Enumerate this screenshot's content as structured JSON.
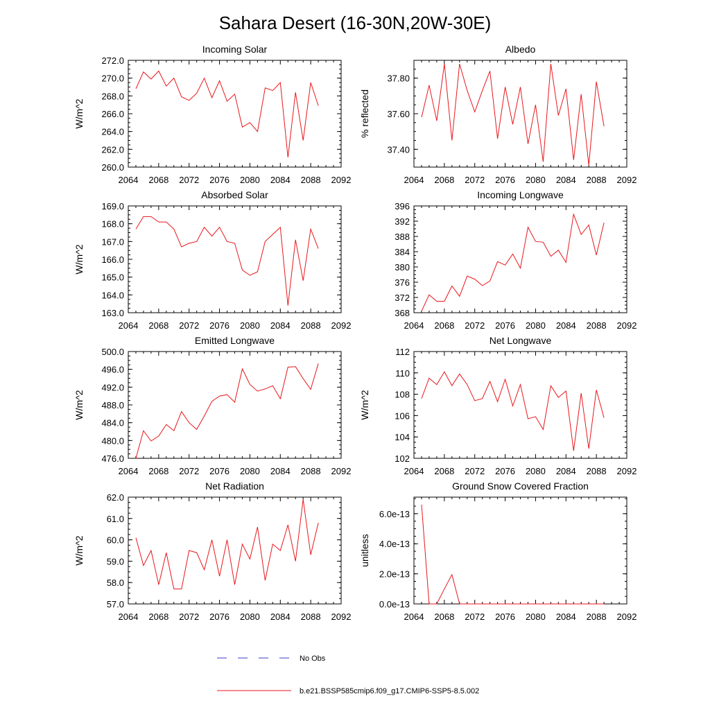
{
  "title": "Sahara Desert (16-30N,20W-30E)",
  "colors": {
    "model": "#e8161b",
    "obs": "#3a3ac9"
  },
  "legend": {
    "obs_label": "No Obs",
    "model_label": "b.e21.BSSP585cmip6.f09_g17.CMIP6-SSP5-8.5.002"
  },
  "chart_data": [
    {
      "type": "line",
      "title": "Incoming Solar",
      "ylabel": "W/m^2",
      "xlim": [
        2064,
        2092
      ],
      "xticks": [
        "2064",
        "2068",
        "2072",
        "2076",
        "2080",
        "2084",
        "2088",
        "2092"
      ],
      "ylim": [
        260,
        272
      ],
      "yticks": [
        "260.0",
        "262.0",
        "264.0",
        "266.0",
        "268.0",
        "270.0",
        "272.0"
      ],
      "x": [
        2065,
        2066,
        2067,
        2068,
        2069,
        2070,
        2071,
        2072,
        2073,
        2074,
        2075,
        2076,
        2077,
        2078,
        2079,
        2080,
        2081,
        2082,
        2083,
        2084,
        2085,
        2086,
        2087,
        2088,
        2089
      ],
      "values": [
        268.8,
        270.7,
        269.9,
        270.8,
        269.1,
        270.0,
        267.9,
        267.5,
        268.3,
        270.0,
        267.8,
        269.7,
        267.4,
        268.2,
        264.5,
        265.0,
        264.0,
        268.9,
        268.6,
        269.5,
        261.1,
        268.4,
        263.0,
        269.5,
        266.9
      ]
    },
    {
      "type": "line",
      "title": "Albedo",
      "ylabel": "% reflected",
      "xlim": [
        2064,
        2092
      ],
      "xticks": [
        "2064",
        "2068",
        "2072",
        "2076",
        "2080",
        "2084",
        "2088",
        "2092"
      ],
      "ylim": [
        37.3,
        37.9
      ],
      "yticks": [
        "37.40",
        "37.60",
        "37.80"
      ],
      "ytick_values": [
        37.4,
        37.6,
        37.8
      ],
      "x": [
        2065,
        2066,
        2067,
        2068,
        2069,
        2070,
        2071,
        2072,
        2073,
        2074,
        2075,
        2076,
        2077,
        2078,
        2079,
        2080,
        2081,
        2082,
        2083,
        2084,
        2085,
        2086,
        2087,
        2088,
        2089
      ],
      "values": [
        37.58,
        37.76,
        37.56,
        37.88,
        37.45,
        37.88,
        37.73,
        37.61,
        37.73,
        37.84,
        37.46,
        37.75,
        37.54,
        37.75,
        37.43,
        37.65,
        37.33,
        37.88,
        37.59,
        37.74,
        37.34,
        37.71,
        37.31,
        37.78,
        37.53
      ]
    },
    {
      "type": "line",
      "title": "Absorbed Solar",
      "ylabel": "W/m^2",
      "xlim": [
        2064,
        2092
      ],
      "xticks": [
        "2064",
        "2068",
        "2072",
        "2076",
        "2080",
        "2084",
        "2088",
        "2092"
      ],
      "ylim": [
        163,
        169
      ],
      "yticks": [
        "163.0",
        "164.0",
        "165.0",
        "166.0",
        "167.0",
        "168.0",
        "169.0"
      ],
      "x": [
        2065,
        2066,
        2067,
        2068,
        2069,
        2070,
        2071,
        2072,
        2073,
        2074,
        2075,
        2076,
        2077,
        2078,
        2079,
        2080,
        2081,
        2082,
        2083,
        2084,
        2085,
        2086,
        2087,
        2088,
        2089
      ],
      "values": [
        167.7,
        168.4,
        168.4,
        168.1,
        168.1,
        167.7,
        166.7,
        166.9,
        167.0,
        167.8,
        167.3,
        167.8,
        167.0,
        166.9,
        165.4,
        165.1,
        165.3,
        167.0,
        167.4,
        167.8,
        163.4,
        167.1,
        164.8,
        167.7,
        166.6
      ]
    },
    {
      "type": "line",
      "title": "Incoming Longwave",
      "ylabel": "",
      "xlim": [
        2064,
        2092
      ],
      "xticks": [
        "2064",
        "2068",
        "2072",
        "2076",
        "2080",
        "2084",
        "2088",
        "2092"
      ],
      "ylim": [
        368,
        396
      ],
      "yticks": [
        "368",
        "372",
        "376",
        "380",
        "384",
        "388",
        "392",
        "396"
      ],
      "x": [
        2065,
        2066,
        2067,
        2068,
        2069,
        2070,
        2071,
        2072,
        2073,
        2074,
        2075,
        2076,
        2077,
        2078,
        2079,
        2080,
        2081,
        2082,
        2083,
        2084,
        2085,
        2086,
        2087,
        2088,
        2089
      ],
      "values": [
        368.4,
        372.7,
        371.0,
        371.0,
        375.0,
        372.3,
        377.6,
        376.8,
        375.1,
        376.3,
        381.4,
        380.5,
        383.4,
        379.7,
        390.4,
        386.7,
        386.5,
        382.8,
        384.4,
        381.2,
        393.8,
        388.5,
        391.0,
        383.1,
        391.6
      ]
    },
    {
      "type": "line",
      "title": "Emitted Longwave",
      "ylabel": "W/m^2",
      "xlim": [
        2064,
        2092
      ],
      "xticks": [
        "2064",
        "2068",
        "2072",
        "2076",
        "2080",
        "2084",
        "2088",
        "2092"
      ],
      "ylim": [
        476,
        500
      ],
      "yticks": [
        "476.0",
        "480.0",
        "484.0",
        "488.0",
        "492.0",
        "496.0",
        "500.0"
      ],
      "x": [
        2065,
        2066,
        2067,
        2068,
        2069,
        2070,
        2071,
        2072,
        2073,
        2074,
        2075,
        2076,
        2077,
        2078,
        2079,
        2080,
        2081,
        2082,
        2083,
        2084,
        2085,
        2086,
        2087,
        2088,
        2089
      ],
      "values": [
        476.0,
        482.2,
        479.9,
        481.0,
        483.6,
        482.2,
        486.5,
        484.0,
        482.5,
        485.5,
        488.8,
        490.0,
        490.3,
        488.6,
        496.1,
        492.6,
        491.1,
        491.6,
        492.3,
        489.4,
        496.5,
        496.6,
        493.9,
        491.5,
        497.3
      ]
    },
    {
      "type": "line",
      "title": "Net Longwave",
      "ylabel": "W/m^2",
      "xlim": [
        2064,
        2092
      ],
      "xticks": [
        "2064",
        "2068",
        "2072",
        "2076",
        "2080",
        "2084",
        "2088",
        "2092"
      ],
      "ylim": [
        102,
        112
      ],
      "yticks": [
        "102",
        "104",
        "106",
        "108",
        "110",
        "112"
      ],
      "x": [
        2065,
        2066,
        2067,
        2068,
        2069,
        2070,
        2071,
        2072,
        2073,
        2074,
        2075,
        2076,
        2077,
        2078,
        2079,
        2080,
        2081,
        2082,
        2083,
        2084,
        2085,
        2086,
        2087,
        2088,
        2089
      ],
      "values": [
        107.6,
        109.5,
        108.9,
        110.1,
        108.8,
        109.9,
        108.9,
        107.4,
        107.6,
        109.2,
        107.3,
        109.4,
        106.9,
        108.9,
        105.7,
        105.9,
        104.7,
        108.8,
        107.7,
        108.3,
        102.7,
        108.1,
        102.9,
        108.4,
        105.8
      ]
    },
    {
      "type": "line",
      "title": "Net Radiation",
      "ylabel": "W/m^2",
      "xlim": [
        2064,
        2092
      ],
      "xticks": [
        "2064",
        "2068",
        "2072",
        "2076",
        "2080",
        "2084",
        "2088",
        "2092"
      ],
      "ylim": [
        57,
        62
      ],
      "yticks": [
        "57.0",
        "58.0",
        "59.0",
        "60.0",
        "61.0",
        "62.0"
      ],
      "x": [
        2065,
        2066,
        2067,
        2068,
        2069,
        2070,
        2071,
        2072,
        2073,
        2074,
        2075,
        2076,
        2077,
        2078,
        2079,
        2080,
        2081,
        2082,
        2083,
        2084,
        2085,
        2086,
        2087,
        2088,
        2089
      ],
      "values": [
        60.1,
        58.8,
        59.5,
        57.9,
        59.4,
        57.7,
        57.7,
        59.5,
        59.4,
        58.6,
        60.0,
        58.3,
        60.0,
        57.9,
        59.8,
        59.1,
        60.6,
        58.1,
        59.8,
        59.5,
        60.7,
        59.0,
        61.9,
        59.3,
        60.8
      ]
    },
    {
      "type": "line",
      "title": "Ground Snow Covered Fraction",
      "ylabel": "unitless",
      "xlim": [
        2064,
        2092
      ],
      "xticks": [
        "2064",
        "2068",
        "2072",
        "2076",
        "2080",
        "2084",
        "2088",
        "2092"
      ],
      "ylim": [
        0,
        7.1e-13
      ],
      "yticks": [
        "0.0e-13",
        "2.0e-13",
        "4.0e-13",
        "6.0e-13"
      ],
      "ytick_values": [
        0,
        2e-13,
        4e-13,
        6e-13
      ],
      "x": [
        2065,
        2066,
        2067,
        2068,
        2069,
        2070,
        2071,
        2072,
        2073,
        2074,
        2075,
        2076,
        2077,
        2078,
        2079,
        2080,
        2081,
        2082,
        2083,
        2084,
        2085,
        2086,
        2087,
        2088,
        2089
      ],
      "values": [
        6.6e-13,
        0,
        0,
        1e-13,
        1.95e-13,
        0,
        0,
        0,
        0,
        0,
        0,
        0,
        0,
        0,
        0,
        0,
        0,
        0,
        0,
        0,
        0,
        0,
        0,
        0,
        0
      ]
    }
  ]
}
